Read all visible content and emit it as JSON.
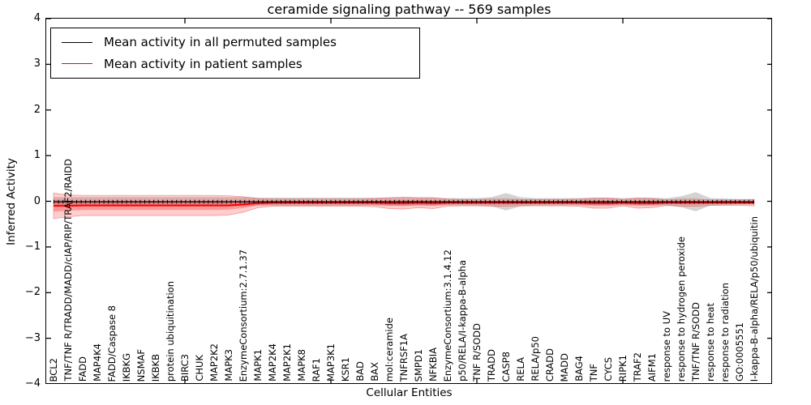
{
  "title": "ceramide signaling pathway -- 569 samples",
  "axes": {
    "ylabel": "Inferred Activity",
    "xlabel": "Cellular Entities",
    "ytick_labels": [
      "4",
      "3",
      "2",
      "1",
      "0",
      "−1",
      "−2",
      "−3",
      "−4"
    ]
  },
  "legend": {
    "items": [
      {
        "label": "Mean activity in all permuted samples",
        "color": "#000000"
      },
      {
        "label": "Mean activity in patient samples",
        "color": "#ff0000"
      }
    ]
  },
  "chart_data": {
    "type": "line",
    "subtype": "mean-lines-with-violin-distribution-bands",
    "title": "ceramide signaling pathway -- 569 samples",
    "xlabel": "Cellular Entities",
    "ylabel": "Inferred Activity",
    "ylim": [
      -4,
      4
    ],
    "grid": false,
    "legend_position": "upper left",
    "x_major_ticks_every": 10,
    "categories": [
      "BCL2",
      "TNF/TNF R/TRADD/MADD/cIAP/RIP/TRAF2/RAIDD",
      "FADD",
      "MAP4K4",
      "FADD/Caspase 8",
      "IKBKG",
      "NSMAF",
      "IKBKB",
      "protein ubiquitination",
      "BIRC3",
      "CHUK",
      "MAP2K2",
      "MAPK3",
      "EnzymeConsortium:2.7.1.37",
      "MAPK1",
      "MAP2K4",
      "MAP2K1",
      "MAPK8",
      "RAF1",
      "MAP3K1",
      "KSR1",
      "BAD",
      "BAX",
      "mol:ceramide",
      "TNFRSF1A",
      "SMPD1",
      "NFKBIA",
      "EnzymeConsortium:3.1.4.12",
      "p50/RELA/I-kappa-B-alpha",
      "TNF R/SODD",
      "TRADD",
      "CASP8",
      "RELA",
      "RELA/p50",
      "CRADD",
      "MADD",
      "BAG4",
      "TNF",
      "CYCS",
      "RIPK1",
      "TRAF2",
      "AIFM1",
      "response to UV",
      "response to hydrogen peroxide",
      "TNF/TNF R/SODD",
      "response to heat",
      "response to radiation",
      "GO:0005551",
      "I-kappa-B-alpha/RELA/p50/ubiquitin"
    ],
    "series": [
      {
        "name": "Mean activity in all permuted samples",
        "color": "#000000",
        "values": [
          -0.01,
          -0.01,
          -0.01,
          -0.01,
          -0.01,
          -0.01,
          -0.01,
          -0.01,
          -0.01,
          -0.01,
          -0.01,
          -0.01,
          -0.01,
          -0.01,
          -0.01,
          -0.01,
          -0.01,
          -0.01,
          -0.01,
          -0.01,
          -0.01,
          -0.01,
          -0.01,
          -0.01,
          -0.01,
          -0.01,
          -0.01,
          -0.01,
          -0.01,
          -0.01,
          -0.01,
          -0.01,
          -0.01,
          -0.01,
          -0.01,
          -0.01,
          -0.01,
          -0.01,
          -0.01,
          -0.01,
          -0.01,
          -0.01,
          -0.01,
          -0.01,
          -0.01,
          -0.01,
          -0.01,
          -0.01,
          -0.01
        ]
      },
      {
        "name": "Mean activity in patient samples",
        "color": "#ff0000",
        "values": [
          -0.1,
          -0.1,
          -0.09,
          -0.09,
          -0.09,
          -0.09,
          -0.09,
          -0.09,
          -0.09,
          -0.09,
          -0.09,
          -0.09,
          -0.09,
          -0.07,
          -0.04,
          -0.03,
          -0.03,
          -0.03,
          -0.03,
          -0.03,
          -0.03,
          -0.03,
          -0.03,
          -0.04,
          -0.04,
          -0.03,
          -0.04,
          -0.03,
          -0.03,
          -0.03,
          -0.03,
          -0.03,
          -0.03,
          -0.03,
          -0.03,
          -0.03,
          -0.03,
          -0.04,
          -0.04,
          -0.03,
          -0.04,
          -0.04,
          -0.03,
          -0.03,
          -0.03,
          -0.03,
          -0.03,
          -0.03,
          -0.03
        ]
      }
    ],
    "bands": [
      {
        "name": "permuted samples distribution",
        "color": "#828282",
        "opacity": 0.35,
        "center_series": 0,
        "half_widths": [
          0.1,
          0.1,
          0.1,
          0.1,
          0.1,
          0.1,
          0.1,
          0.1,
          0.1,
          0.1,
          0.1,
          0.1,
          0.1,
          0.1,
          0.09,
          0.09,
          0.09,
          0.09,
          0.09,
          0.09,
          0.09,
          0.09,
          0.09,
          0.09,
          0.09,
          0.09,
          0.09,
          0.08,
          0.08,
          0.08,
          0.1,
          0.19,
          0.1,
          0.08,
          0.08,
          0.08,
          0.08,
          0.09,
          0.09,
          0.08,
          0.09,
          0.09,
          0.08,
          0.12,
          0.21,
          0.08,
          0.07,
          0.06,
          0.06
        ]
      },
      {
        "name": "patient samples distribution",
        "color": "#ff1e1e",
        "opacity": 0.22,
        "center_series": 1,
        "half_widths": [
          0.28,
          0.24,
          0.22,
          0.22,
          0.22,
          0.22,
          0.22,
          0.22,
          0.22,
          0.22,
          0.22,
          0.22,
          0.21,
          0.17,
          0.1,
          0.08,
          0.08,
          0.08,
          0.08,
          0.08,
          0.08,
          0.08,
          0.09,
          0.12,
          0.13,
          0.11,
          0.12,
          0.08,
          0.07,
          0.07,
          0.08,
          0.08,
          0.07,
          0.07,
          0.07,
          0.07,
          0.08,
          0.11,
          0.11,
          0.07,
          0.11,
          0.1,
          0.06,
          0.08,
          0.08,
          0.06,
          0.06,
          0.06,
          0.07
        ]
      }
    ]
  }
}
